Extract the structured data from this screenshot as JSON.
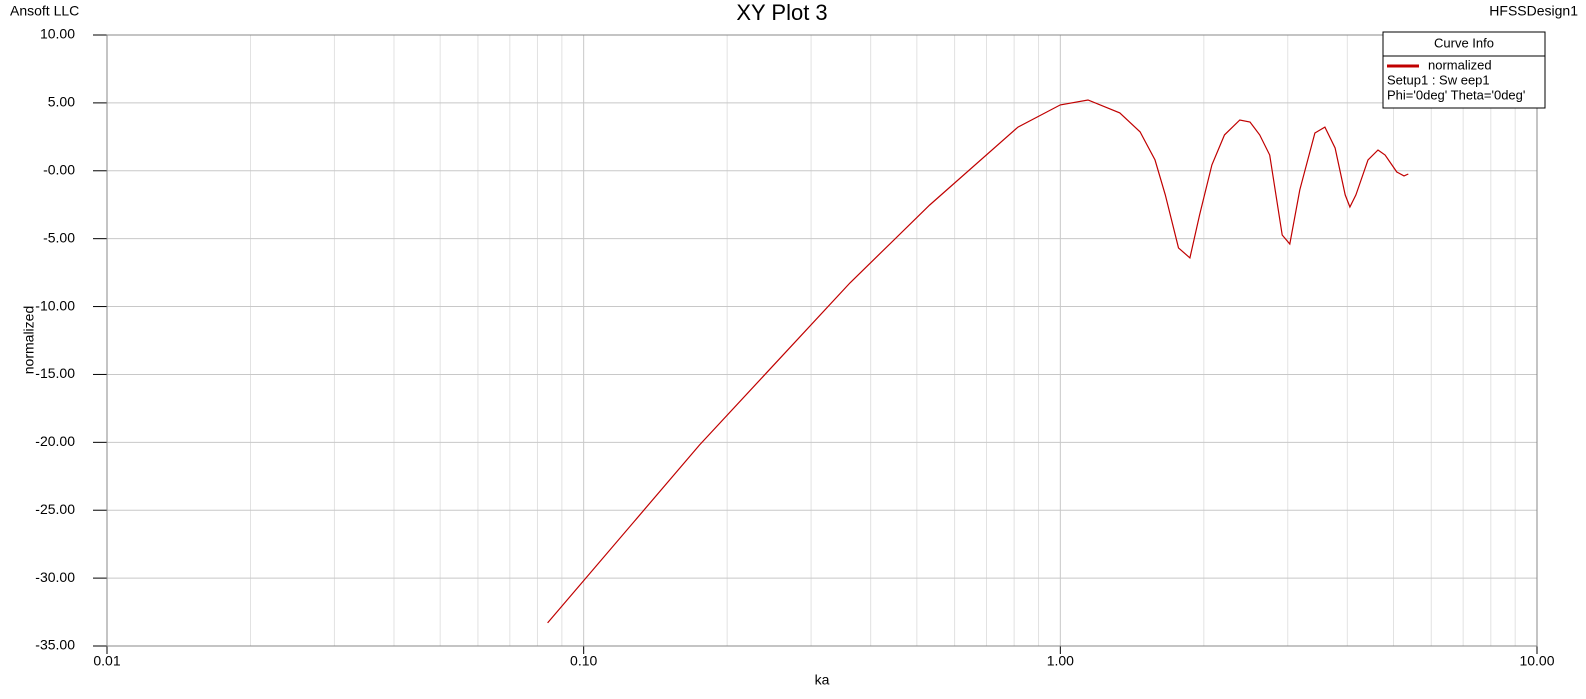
{
  "header": {
    "left": "Ansoft LLC",
    "right": "HFSSDesign1"
  },
  "chart_data": {
    "type": "line",
    "title": "XY Plot 3",
    "x_label": "ka",
    "y_label": "normalized",
    "x_scale": "log",
    "grid": true,
    "x": [
      0.084,
      0.175,
      0.362,
      0.532,
      0.815,
      1.0,
      1.143,
      1.333,
      1.47,
      1.58,
      1.66,
      1.77,
      1.87,
      1.96,
      2.08,
      2.21,
      2.38,
      2.5,
      2.62,
      2.75,
      2.92,
      3.03,
      3.18,
      3.42,
      3.59,
      3.77,
      3.96,
      4.05,
      4.17,
      4.42,
      4.64,
      4.8,
      5.08,
      5.26,
      5.37
    ],
    "series": [
      {
        "name": "normalized",
        "color": "#c00000",
        "values": [
          -33.3,
          -20.2,
          -8.26,
          -2.52,
          3.22,
          4.85,
          5.21,
          4.26,
          2.86,
          0.8,
          -1.78,
          -5.68,
          -6.42,
          -3.25,
          0.43,
          2.64,
          3.74,
          3.59,
          2.64,
          1.16,
          -4.73,
          -5.39,
          -1.41,
          2.78,
          3.22,
          1.68,
          -1.78,
          -2.67,
          -1.78,
          0.8,
          1.53,
          1.16,
          -0.09,
          -0.38,
          -0.24
        ]
      }
    ],
    "legend": {
      "title": "Curve Info",
      "lines": [
        "Setup1 : Sw eep1",
        "Phi='0deg' Theta='0deg'"
      ],
      "corner": "upper right"
    },
    "xlim": [
      0.01,
      10
    ],
    "xticks": [
      0.01,
      {
        "value": 0.1,
        "label": "0.10"
      },
      {
        "value": 1,
        "label": "1.00"
      },
      {
        "value": 10,
        "label": "10.00"
      }
    ],
    "x_minor_grid": [
      0.02,
      0.03,
      0.04,
      0.05,
      0.06,
      0.07,
      0.08,
      0.09,
      0.2,
      0.3,
      0.4,
      0.5,
      0.6,
      0.7,
      0.8,
      0.9,
      2,
      3,
      4,
      5,
      6,
      7,
      8,
      9
    ],
    "ylim": [
      -35,
      10
    ],
    "yticks": [
      {
        "value": 10,
        "label": "10.00"
      },
      {
        "value": 5,
        "label": "5.00"
      },
      {
        "value": 0,
        "label": "-0.00"
      },
      {
        "value": -5,
        "label": "-5.00"
      },
      {
        "value": -10,
        "label": "-10.00"
      },
      {
        "value": -15,
        "label": "-15.00"
      },
      {
        "value": -20,
        "label": "-20.00"
      },
      {
        "value": -25,
        "label": "-25.00"
      },
      {
        "value": -30,
        "label": "-30.00"
      },
      {
        "value": -35,
        "label": "-35.00"
      }
    ]
  }
}
